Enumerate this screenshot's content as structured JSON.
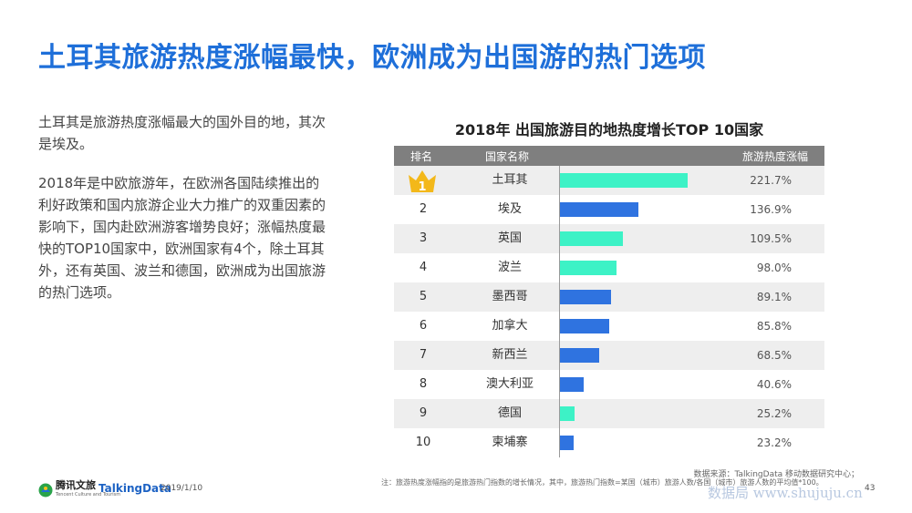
{
  "page": {
    "title": "土耳其旅游热度涨幅最快，欧洲成为出国游的热门选项",
    "paragraph1": "土耳其是旅游热度涨幅最大的国外目的地，其次是埃及。",
    "paragraph2": "2018年是中欧旅游年，在欧洲各国陆续推出的利好政策和国内旅游企业大力推广的双重因素的影响下，国内赴欧洲游客增势良好；涨幅热度最快的TOP10国家中，欧洲国家有4个，除土耳其外，还有英国、波兰和德国，欧洲成为出国旅游的热门选项。"
  },
  "chart_data": {
    "type": "bar",
    "orientation": "horizontal",
    "title": "2018年 出国旅游目的地热度增长TOP 10国家",
    "headers": {
      "rank": "排名",
      "country": "国家名称",
      "growth": "旅游热度涨幅"
    },
    "ranks": [
      "1",
      "2",
      "3",
      "4",
      "5",
      "6",
      "7",
      "8",
      "9",
      "10"
    ],
    "categories": [
      "土耳其",
      "埃及",
      "英国",
      "波兰",
      "墨西哥",
      "加拿大",
      "新西兰",
      "澳大利亚",
      "德国",
      "柬埔寨"
    ],
    "values": [
      221.7,
      136.9,
      109.5,
      98.0,
      89.1,
      85.8,
      68.5,
      40.6,
      25.2,
      23.2
    ],
    "labels": [
      "221.7%",
      "136.9%",
      "109.5%",
      "98.0%",
      "89.1%",
      "85.8%",
      "68.5%",
      "40.6%",
      "25.2%",
      "23.2%"
    ],
    "region": [
      "europe",
      "other",
      "europe",
      "europe",
      "other",
      "other",
      "other",
      "other",
      "europe",
      "other"
    ],
    "colors": {
      "europe": "#3df2c6",
      "other": "#2f73e0",
      "crown": "#f3b81a"
    },
    "xlim": [
      0,
      221.7
    ]
  },
  "footer": {
    "source": "数据来源：TalkingData 移动数据研究中心；",
    "note": "注：旅游热度涨幅指的是旅游热门指数的增长情况，其中，旅游热门指数=某国（城市）旅游人数/各国（城市）旅游人数的平均值*100。",
    "logo_tencent": "腾讯文旅",
    "logo_tencent_sub": "Tencent Culture and Tourism",
    "logo_talkingdata": "TalkingData",
    "date": "2019/1/10",
    "page_number": "43",
    "watermark": "数据局 www.shujuju.cn"
  }
}
